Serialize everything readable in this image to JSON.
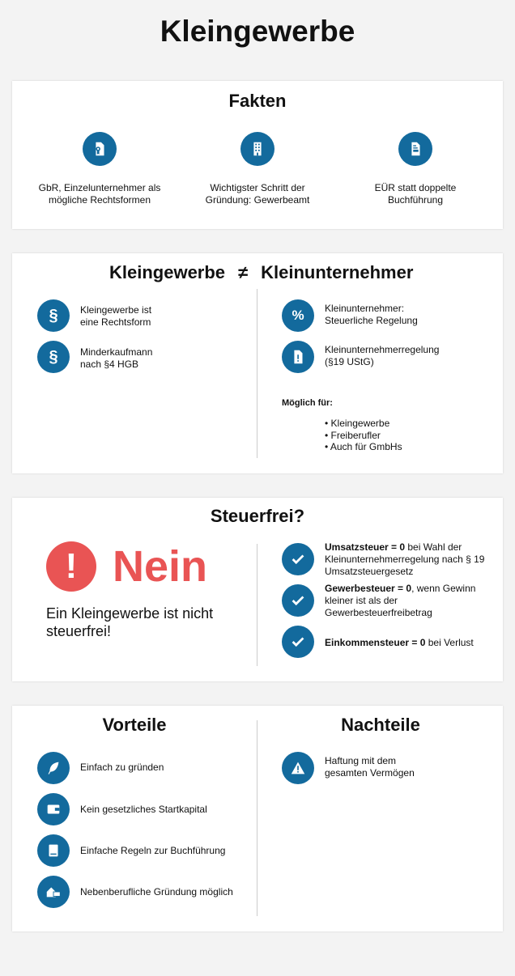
{
  "title": "Kleingewerbe",
  "colors": {
    "accent": "#136a9d",
    "alert": "#e95454"
  },
  "fakten": {
    "heading": "Fakten",
    "items": [
      {
        "icon": "certificate-document-icon",
        "line1": "GbR, Einzelunternehmer als",
        "line2": "mögliche Rechtsformen"
      },
      {
        "icon": "building-icon",
        "line1": "Wichtigster Schritt der",
        "line2": "Gründung: Gewerbeamt"
      },
      {
        "icon": "form-document-icon",
        "line1": "EÜR statt doppelte",
        "line2": "Buchführung"
      }
    ]
  },
  "vergleich": {
    "left_heading": "Kleingewerbe",
    "symbol": "≠",
    "right_heading": "Kleinunternehmer",
    "left": [
      {
        "icon": "paragraph-icon",
        "glyph": "§",
        "line1": "Kleingewerbe ist",
        "line2": "eine Rechtsform"
      },
      {
        "icon": "paragraph-icon",
        "glyph": "§",
        "line1": "Minderkaufmann",
        "line2": "nach §4 HGB"
      }
    ],
    "right": [
      {
        "icon": "percent-icon",
        "glyph": "%",
        "line1": "Kleinunternehmer:",
        "line2": "Steuerliche Regelung"
      },
      {
        "icon": "document-alert-icon",
        "glyph": "!",
        "line1": "Kleinunternehmerregelung",
        "line2": "(§19 UStG)"
      }
    ],
    "moeglich_label": "Möglich für:",
    "moeglich": [
      "• Kleingewerbe",
      "• Freiberufler",
      "• Auch für GmbHs"
    ]
  },
  "steuerfrei": {
    "heading": "Steuerfrei?",
    "answer": "Nein",
    "statement_line1": "Ein Kleingewerbe ist nicht",
    "statement_line2": "steuerfrei!",
    "items": [
      {
        "bold": "Umsatzsteuer = 0",
        "rest": " bei Wahl der Kleinunternehmerregelung nach § 19 Umsatzsteuergesetz"
      },
      {
        "bold": "Gewerbesteuer = 0",
        "rest": ", wenn Gewinn kleiner ist als der Gewerbesteuerfreibetrag"
      },
      {
        "bold": "Einkommensteuer = 0",
        "rest": " bei Verlust"
      }
    ]
  },
  "vorteile": {
    "heading": "Vorteile",
    "items": [
      {
        "icon": "feather-icon",
        "text": "Einfach zu gründen"
      },
      {
        "icon": "wallet-icon",
        "text": "Kein gesetzliches Startkapital"
      },
      {
        "icon": "book-icon",
        "text": "Einfache Regeln zur Buchführung"
      },
      {
        "icon": "home-office-icon",
        "text": "Nebenberufliche Gründung möglich"
      }
    ]
  },
  "nachteile": {
    "heading": "Nachteile",
    "items": [
      {
        "icon": "warning-icon",
        "line1": "Haftung mit dem",
        "line2": "gesamten Vermögen"
      }
    ]
  }
}
